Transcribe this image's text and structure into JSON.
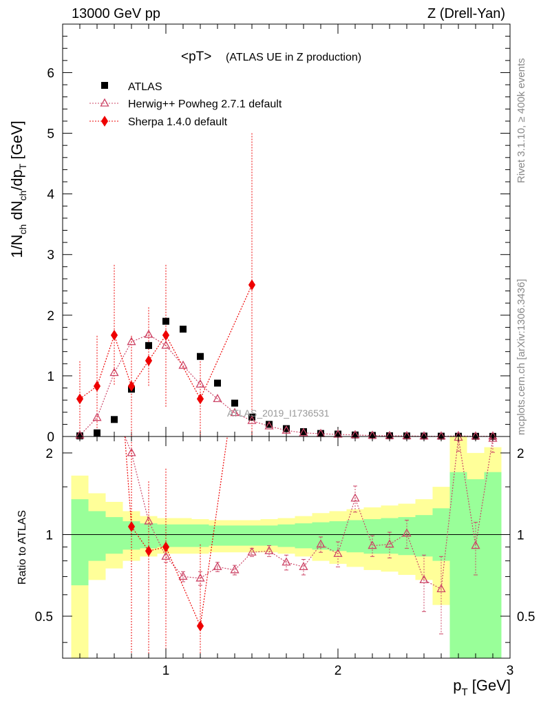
{
  "header": {
    "left": "13000 GeV pp",
    "right": "Z (Drell-Yan)"
  },
  "side_labels": {
    "rivet": "Rivet 3.1.10, ≥ 400k events",
    "mcplots": "mcplots.cern.ch [arXiv:1306.3436]"
  },
  "colors": {
    "atlas": "#000000",
    "herwig": "#cc4466",
    "sherpa": "#ee0000",
    "band_green": "#99ff99",
    "band_yellow": "#ffff99"
  },
  "chart_data": [
    {
      "type": "scatter",
      "title": "<pT>",
      "title_note": "(ATLAS UE in Z production)",
      "watermark": "ATLAS_2019_I1736531",
      "ylabel": "1/N_ch dN_ch/dp_T [GeV]",
      "xlabel": "",
      "xlim": [
        0.4,
        3.0
      ],
      "ylim": [
        0,
        6.8
      ],
      "yticks": [
        0,
        1,
        2,
        3,
        4,
        5,
        6
      ],
      "legend_position": "top-left",
      "series": [
        {
          "name": "ATLAS",
          "marker": "square",
          "x": [
            0.5,
            0.6,
            0.7,
            0.8,
            0.9,
            1.0,
            1.1,
            1.2,
            1.3,
            1.4,
            1.5,
            1.6,
            1.7,
            1.8,
            1.9,
            2.0,
            2.1,
            2.2,
            2.3,
            2.4,
            2.5,
            2.6,
            2.7,
            2.8,
            2.9
          ],
          "y": [
            0.01,
            0.06,
            0.28,
            0.78,
            1.5,
            1.9,
            1.77,
            1.32,
            0.88,
            0.55,
            0.32,
            0.2,
            0.13,
            0.08,
            0.05,
            0.04,
            0.025,
            0.018,
            0.012,
            0.009,
            0.007,
            0.005,
            0.004,
            0.003,
            0.002
          ]
        },
        {
          "name": "Herwig++ Powheg 2.7.1 default",
          "marker": "open-triangle",
          "line": "dotted",
          "x": [
            0.5,
            0.6,
            0.7,
            0.8,
            0.9,
            1.0,
            1.1,
            1.2,
            1.3,
            1.4,
            1.5,
            1.6,
            1.7,
            1.8,
            1.9,
            2.0,
            2.1,
            2.2,
            2.3,
            2.4,
            2.5,
            2.6,
            2.7,
            2.8,
            2.9
          ],
          "y": [
            0.02,
            0.31,
            1.05,
            1.56,
            1.68,
            1.5,
            1.17,
            0.86,
            0.62,
            0.39,
            0.26,
            0.17,
            0.1,
            0.06,
            0.045,
            0.035,
            0.025,
            0.016,
            0.011,
            0.009,
            0.005,
            0.004,
            0.01,
            0.003,
            0.005
          ]
        },
        {
          "name": "Sherpa 1.4.0 default",
          "marker": "diamond",
          "line": "dotted",
          "x": [
            0.5,
            0.6,
            0.7,
            0.8,
            0.9,
            1.0,
            1.2,
            1.5
          ],
          "y": [
            0.62,
            0.83,
            1.67,
            0.83,
            1.25,
            1.67,
            0.62,
            2.5
          ],
          "yerr_low": [
            0.62,
            0.83,
            0.83,
            0.83,
            0.42,
            1.19,
            0.62,
            2.5
          ],
          "yerr_high": [
            0.62,
            0.83,
            1.16,
            0.83,
            0.88,
            1.16,
            0.62,
            2.5
          ]
        }
      ]
    },
    {
      "type": "scatter",
      "title": "",
      "ylabel": "Ratio to ATLAS",
      "xlabel": "p_T [GeV]",
      "xlim": [
        0.4,
        3.0
      ],
      "ylim": [
        0.35,
        2.3
      ],
      "yticks": [
        0.5,
        1,
        2
      ],
      "xticks": [
        1,
        2,
        3
      ],
      "reference_line": 1,
      "bands": {
        "edges": [
          0.45,
          0.55,
          0.65,
          0.75,
          0.85,
          0.95,
          1.05,
          1.15,
          1.25,
          1.35,
          1.45,
          1.55,
          1.65,
          1.75,
          1.85,
          1.95,
          2.05,
          2.15,
          2.25,
          2.35,
          2.45,
          2.55,
          2.65,
          2.75,
          2.85,
          2.95
        ],
        "green_low": [
          0.65,
          0.8,
          0.85,
          0.88,
          0.89,
          0.9,
          0.9,
          0.9,
          0.91,
          0.91,
          0.91,
          0.91,
          0.9,
          0.89,
          0.88,
          0.87,
          0.86,
          0.85,
          0.85,
          0.84,
          0.83,
          0.8,
          0.3,
          0.32,
          0.3
        ],
        "green_high": [
          1.35,
          1.22,
          1.16,
          1.12,
          1.1,
          1.09,
          1.09,
          1.09,
          1.08,
          1.08,
          1.08,
          1.08,
          1.09,
          1.1,
          1.11,
          1.12,
          1.13,
          1.14,
          1.15,
          1.16,
          1.18,
          1.25,
          1.7,
          1.6,
          1.7
        ],
        "yellow_low": [
          0.3,
          0.68,
          0.75,
          0.8,
          0.83,
          0.85,
          0.85,
          0.85,
          0.86,
          0.86,
          0.86,
          0.86,
          0.85,
          0.83,
          0.8,
          0.78,
          0.76,
          0.74,
          0.73,
          0.71,
          0.68,
          0.55,
          0.3,
          0.3,
          0.3
        ],
        "yellow_high": [
          1.65,
          1.42,
          1.32,
          1.22,
          1.17,
          1.15,
          1.15,
          1.14,
          1.13,
          1.13,
          1.13,
          1.14,
          1.15,
          1.17,
          1.2,
          1.22,
          1.24,
          1.26,
          1.28,
          1.3,
          1.35,
          1.5,
          2.3,
          2.0,
          2.1
        ]
      },
      "series": [
        {
          "name": "Herwig++ Powheg 2.7.1 default",
          "marker": "open-triangle",
          "line": "dotted",
          "x": [
            0.8,
            0.9,
            1.0,
            1.1,
            1.2,
            1.3,
            1.4,
            1.5,
            1.6,
            1.7,
            1.8,
            1.9,
            2.0,
            2.1,
            2.2,
            2.3,
            2.4,
            2.5,
            2.6,
            2.7,
            2.8,
            2.9
          ],
          "y": [
            2.0,
            1.12,
            0.83,
            0.7,
            0.69,
            0.76,
            0.74,
            0.86,
            0.87,
            0.79,
            0.76,
            0.92,
            0.85,
            1.36,
            0.91,
            0.92,
            1.01,
            0.68,
            0.63,
            2.28,
            0.91,
            2.26
          ],
          "yerr": [
            0.0,
            0.0,
            0.04,
            0.03,
            0.04,
            0.03,
            0.03,
            0.03,
            0.04,
            0.05,
            0.05,
            0.06,
            0.09,
            0.15,
            0.08,
            0.1,
            0.12,
            0.16,
            0.2,
            0.25,
            0.2,
            0.25
          ]
        },
        {
          "name": "Sherpa 1.4.0 default",
          "marker": "diamond",
          "line": "dotted",
          "x": [
            0.8,
            0.9,
            1.0,
            1.2
          ],
          "y": [
            1.07,
            0.87,
            0.9,
            0.46
          ],
          "yerr_low": [
            0.8,
            0.6,
            0.65,
            0.46
          ],
          "yerr_high": [
            1.3,
            0.7,
            0.85,
            0.46
          ]
        }
      ]
    }
  ]
}
